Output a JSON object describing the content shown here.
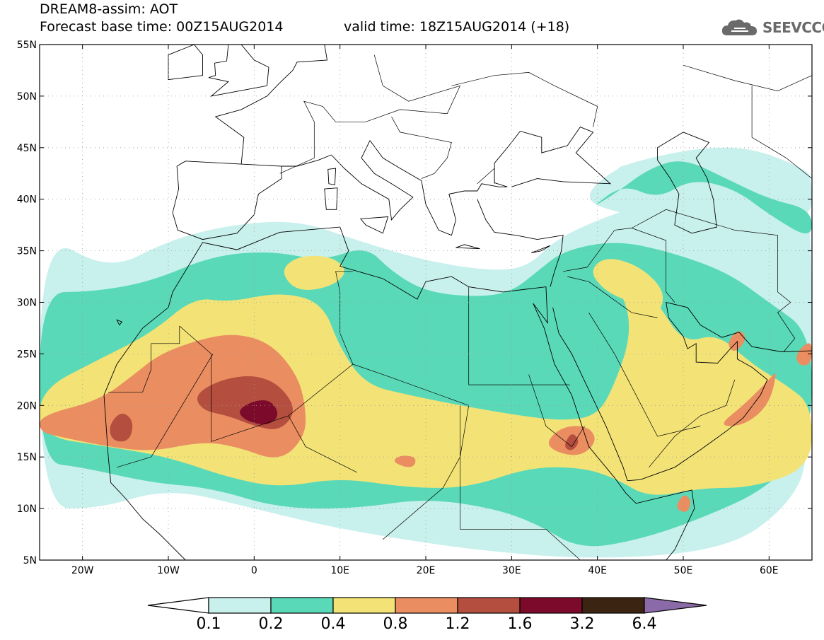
{
  "header": {
    "line1": "DREAM8-assim: AOT",
    "line2": "Forecast base time: 00Z15AUG2014",
    "line3": "valid time: 18Z15AUG2014 (+18)"
  },
  "logo": {
    "text": "SEEVCCC",
    "icon": "cloud-icon"
  },
  "map": {
    "lat_range": [
      5,
      55
    ],
    "lon_range": [
      -25,
      65
    ],
    "lat_ticks": [
      "5N",
      "10N",
      "15N",
      "20N",
      "25N",
      "30N",
      "35N",
      "40N",
      "45N",
      "50N",
      "55N"
    ],
    "lon_ticks": [
      "20W",
      "10W",
      "0",
      "10E",
      "20E",
      "30E",
      "40E",
      "50E",
      "60E"
    ],
    "grid": "dotted"
  },
  "colorbar": {
    "labels": [
      "0.1",
      "0.2",
      "0.4",
      "0.8",
      "1.2",
      "1.6",
      "3.2",
      "6.4"
    ],
    "colors": [
      "#c8f0ec",
      "#5ad9b8",
      "#f3e377",
      "#ea8e62",
      "#b44e3e",
      "#7c0a2b",
      "#3b2412",
      "#8a6ba8"
    ]
  },
  "levels": [
    {
      "min": 0.1,
      "color": "#c8f0ec"
    },
    {
      "min": 0.2,
      "color": "#5ad9b8"
    },
    {
      "min": 0.4,
      "color": "#f3e377"
    },
    {
      "min": 0.8,
      "color": "#ea8e62"
    },
    {
      "min": 1.2,
      "color": "#b44e3e"
    },
    {
      "min": 1.6,
      "color": "#7c0a2b"
    }
  ]
}
